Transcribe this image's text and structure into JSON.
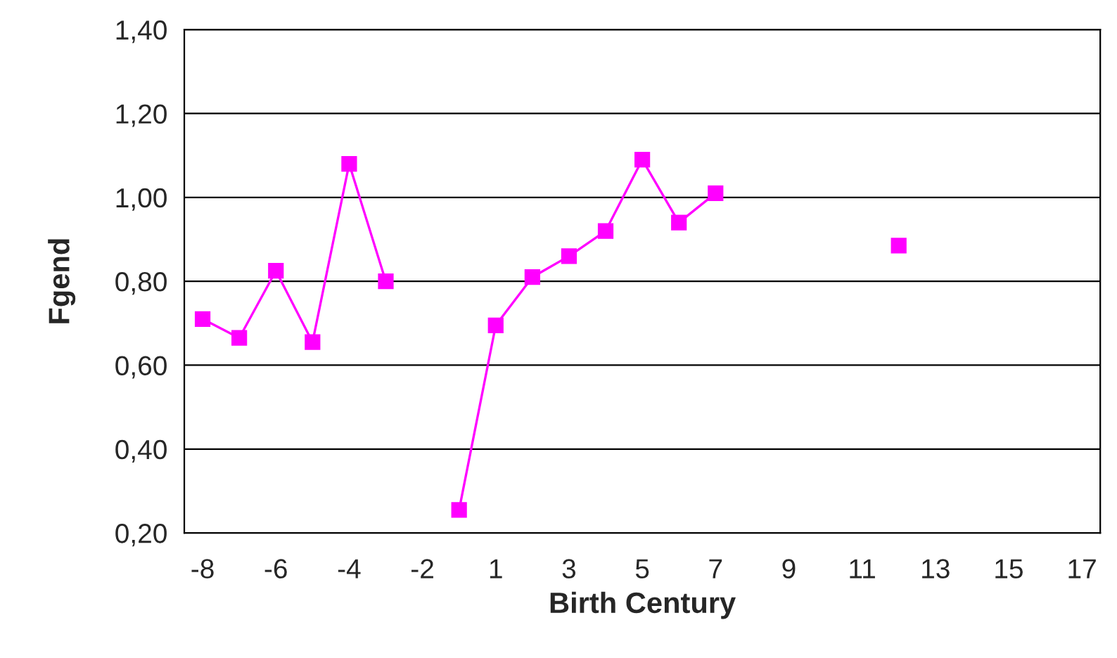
{
  "chart_data": {
    "type": "line",
    "xlabel": "Birth Century",
    "ylabel": "Fgend",
    "categories": [
      "-8",
      null,
      "-6",
      null,
      "-4",
      null,
      "-2",
      null,
      "1",
      null,
      "3",
      null,
      "5",
      null,
      "7",
      null,
      "9",
      null,
      "11",
      null,
      "13",
      null,
      "15",
      null,
      "17"
    ],
    "series": [
      {
        "color": "#ff00ff",
        "values": [
          0.71,
          0.665,
          0.825,
          0.655,
          1.08,
          0.8,
          null,
          0.255,
          0.695,
          0.81,
          0.86,
          0.92,
          1.09,
          0.94,
          1.01,
          null,
          null,
          null,
          null,
          0.885,
          null,
          null,
          null,
          null,
          null
        ]
      }
    ],
    "ylim": [
      0.2,
      1.4
    ],
    "yticks": [
      {
        "value": 0.2,
        "label": "0,20"
      },
      {
        "value": 0.4,
        "label": "0,40"
      },
      {
        "value": 0.6,
        "label": "0,60"
      },
      {
        "value": 0.8,
        "label": "0,80"
      },
      {
        "value": 1.0,
        "label": "1,00"
      },
      {
        "value": 1.2,
        "label": "1,20"
      },
      {
        "value": 1.4,
        "label": "1,40"
      }
    ],
    "grid": "y",
    "marker": "square",
    "line_style": "solid",
    "legend": false
  }
}
